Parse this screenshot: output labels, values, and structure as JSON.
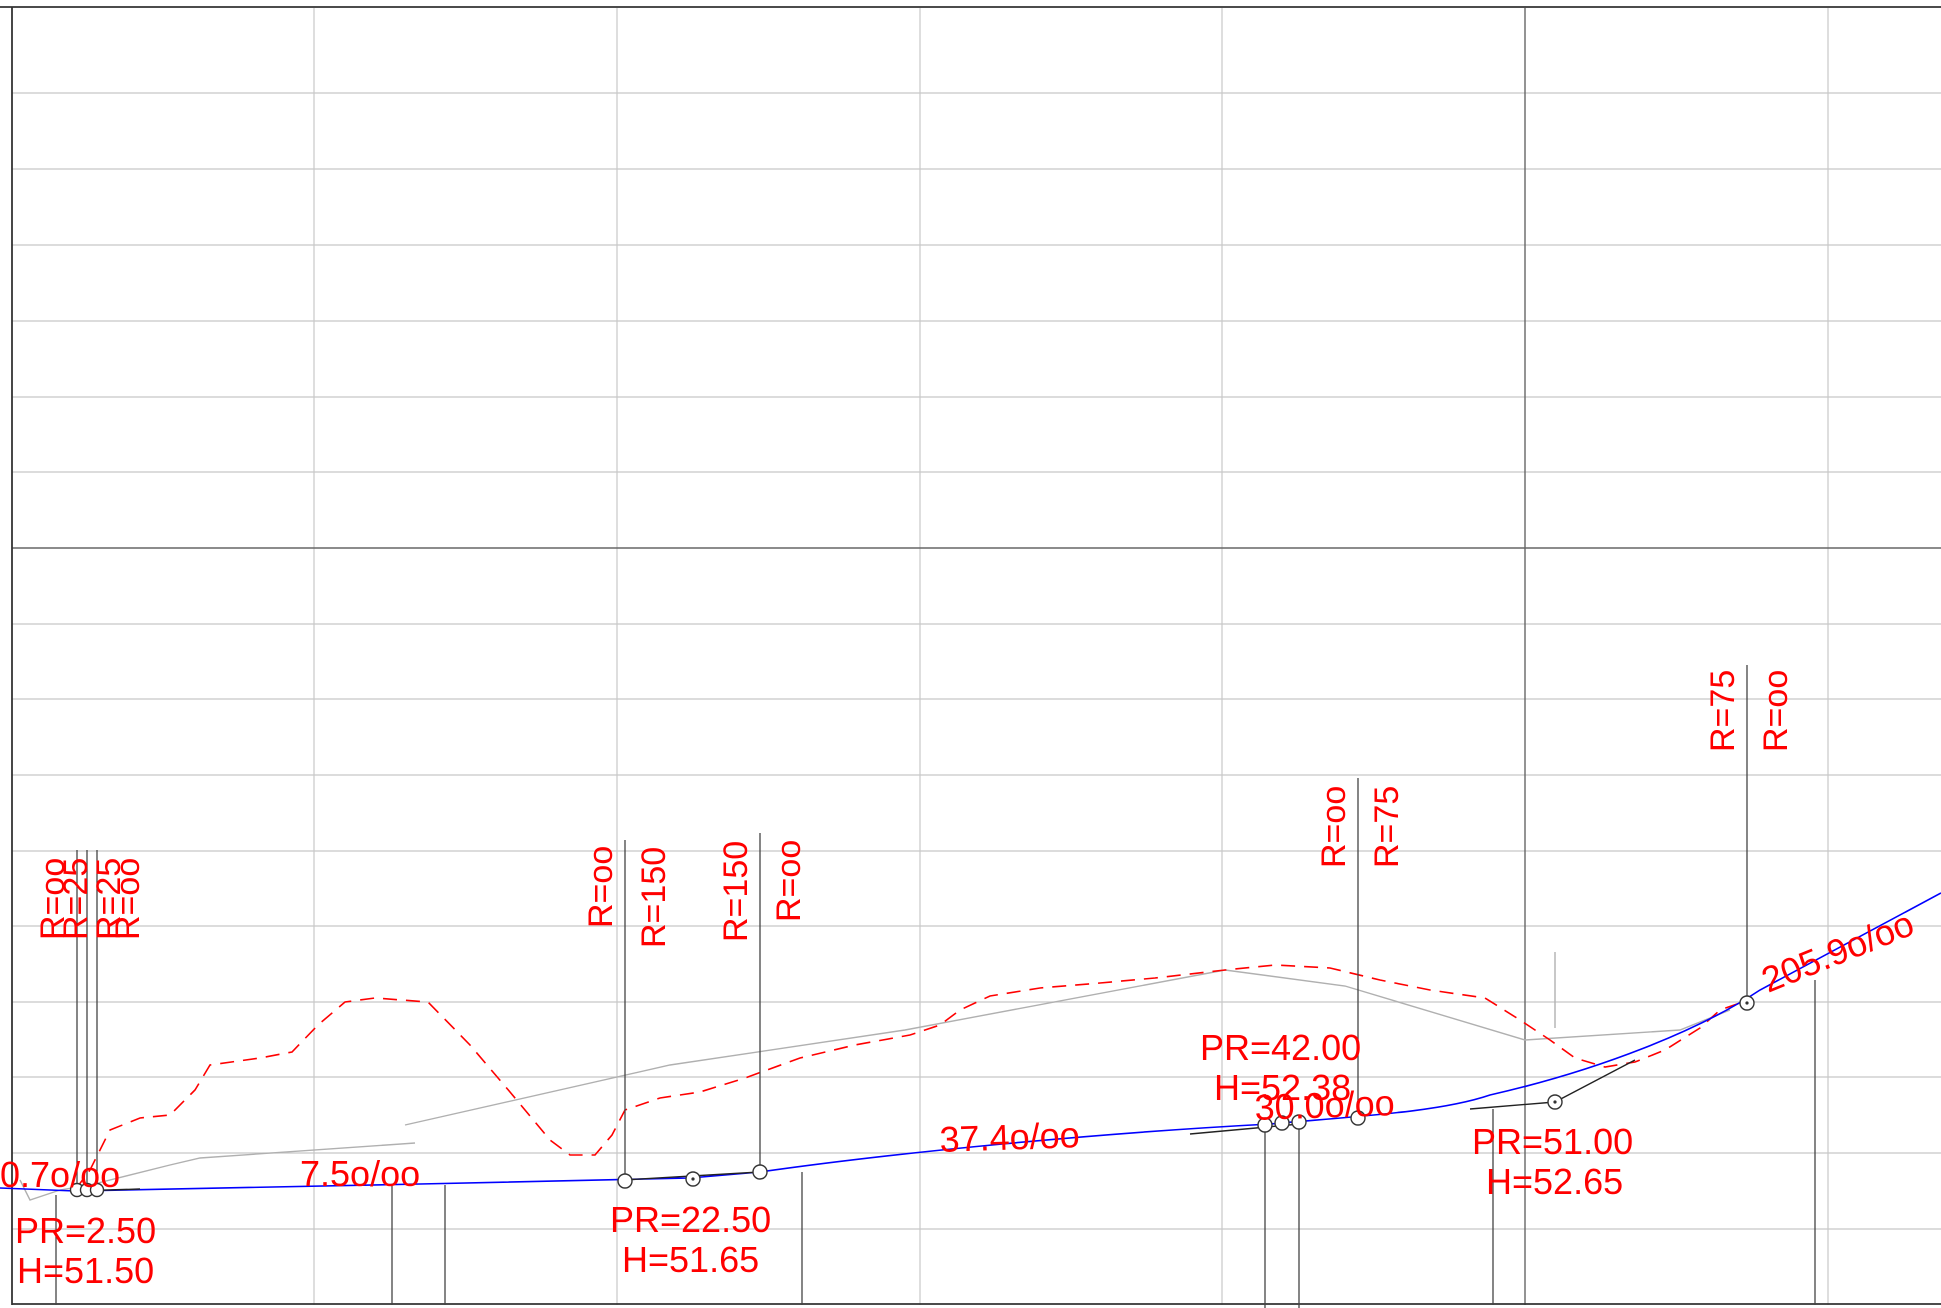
{
  "colors": {
    "background": "#ffffff",
    "grid_minor": "#c8c8c8",
    "grid_major": "#555555",
    "frame": "#333333",
    "annotation": "#ff0000",
    "design_line": "#0000ff",
    "terrain_dashed": "#ff0000",
    "guide": "#b0b0b0",
    "marker": "#333333"
  },
  "grade_labels": {
    "g1": "0.7o/oo",
    "g2": "7.5o/oo",
    "g3": "37.4o/oo",
    "g4": "30.0o/oo",
    "g5": "205.9o/oo"
  },
  "station_labels": {
    "s1_pr": "PR=2.50",
    "s1_h": "H=51.50",
    "s2_pr": "PR=22.50",
    "s2_h": "H=51.65",
    "s3_pr": "PR=42.00",
    "s3_h": "H=52.38",
    "s4_pr": "PR=51.00",
    "s4_h": "H=52.65"
  },
  "radius_labels": {
    "a1": "R=oo",
    "a2": "R=25",
    "a3": "R=25",
    "a4": "R=oo",
    "b1": "R=oo",
    "b2": "R=150",
    "c1": "R=150",
    "c2": "R=oo",
    "d1": "R=oo",
    "d2": "R=75",
    "e1": "R=75",
    "e2": "R=oo"
  }
}
